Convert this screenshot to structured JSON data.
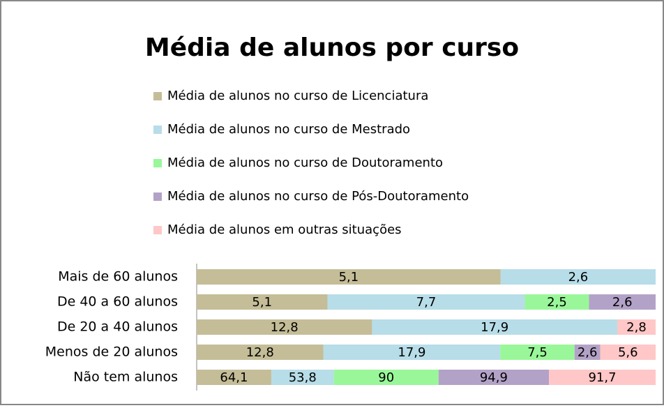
{
  "chart_data": {
    "type": "bar",
    "orientation": "horizontal",
    "stacking": "percent",
    "title": "Média de alunos por curso",
    "categories": [
      "Mais de 60 alunos",
      "De 40 a 60 alunos",
      "De 20 a 40 alunos",
      "Menos de 20 alunos",
      "Não tem alunos"
    ],
    "series": [
      {
        "name": "Média de alunos no curso de Licenciatura",
        "color": "#c4bd97",
        "values": [
          5.1,
          5.1,
          12.8,
          12.8,
          64.1
        ],
        "value_labels": [
          "5,1",
          "5,1",
          "12,8",
          "12,8",
          "64,1"
        ]
      },
      {
        "name": "Média de alunos no curso de Mestrado",
        "color": "#b7dde8",
        "values": [
          2.6,
          7.7,
          17.9,
          17.9,
          53.8
        ],
        "value_labels": [
          "2,6",
          "7,7",
          "17,9",
          "17,9",
          "53,8"
        ]
      },
      {
        "name": "Média de alunos no curso de Doutoramento",
        "color": "#99f799",
        "values": [
          null,
          2.5,
          null,
          7.5,
          90
        ],
        "value_labels": [
          null,
          "2,5",
          null,
          "7,5",
          "90"
        ]
      },
      {
        "name": "Média de alunos no curso de Pós-Doutoramento",
        "color": "#b3a2c7",
        "values": [
          null,
          2.6,
          null,
          2.6,
          94.9
        ],
        "value_labels": [
          null,
          "2,6",
          null,
          "2,6",
          "94,9"
        ]
      },
      {
        "name": "Média de alunos em outras situações",
        "color": "#ffc7c7",
        "values": [
          null,
          null,
          2.8,
          5.6,
          91.7
        ],
        "value_labels": [
          null,
          null,
          "2,8",
          "5,6",
          "91,7"
        ]
      }
    ]
  }
}
